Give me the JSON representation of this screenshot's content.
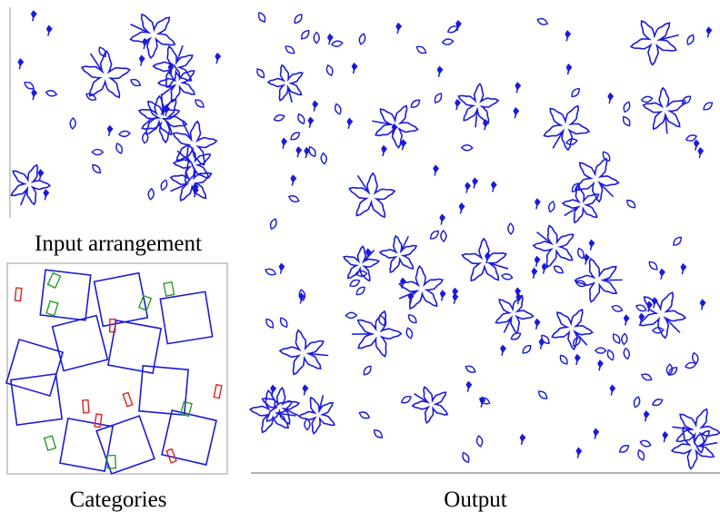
{
  "panels": {
    "input": {
      "caption": "Input arrangement"
    },
    "categories": {
      "caption": "Categories"
    },
    "output": {
      "caption": "Output"
    }
  }
}
